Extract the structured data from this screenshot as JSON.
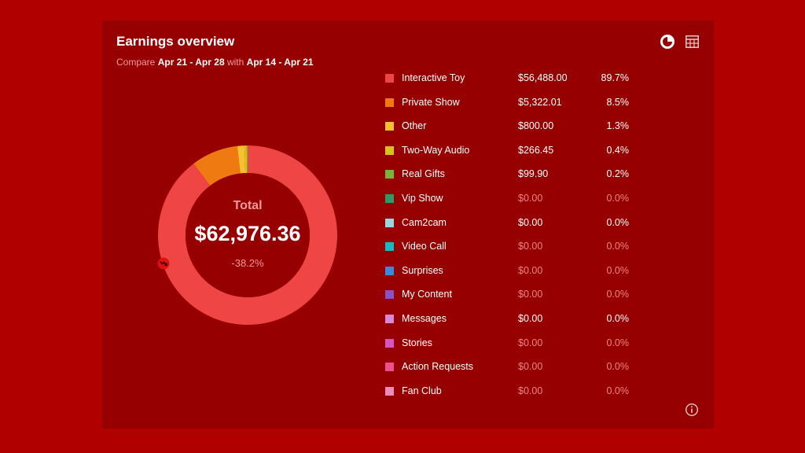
{
  "header": {
    "title": "Earnings overview",
    "compare_word": "Compare",
    "current_range": "Apr 21 - Apr 28",
    "with_word": "with",
    "previous_range": "Apr 14 - Apr 21"
  },
  "toolbar": {
    "pie_view_icon": "pie-chart-icon",
    "table_view_icon": "table-icon",
    "info_icon": "info-icon"
  },
  "summary": {
    "total_label": "Total",
    "total_value": "$62,976.36",
    "change": "-38.2%",
    "change_icon": "trend-down-icon"
  },
  "colors": {
    "page_bg": "#b10000",
    "panel_bg": "#960000",
    "donut_hole": "#960000"
  },
  "chart_data": {
    "type": "pie",
    "title": "Earnings overview",
    "categories": [
      "Interactive Toy",
      "Private Show",
      "Other",
      "Two-Way Audio",
      "Real Gifts",
      "Vip Show",
      "Cam2cam",
      "Video Call",
      "Surprises",
      "My Content",
      "Messages",
      "Stories",
      "Action Requests",
      "Fan Club"
    ],
    "values": [
      56488.0,
      5322.01,
      800.0,
      266.45,
      99.9,
      0,
      0,
      0,
      0,
      0,
      0,
      0,
      0,
      0
    ],
    "percentages": [
      89.7,
      8.5,
      1.3,
      0.4,
      0.2,
      0,
      0,
      0,
      0,
      0,
      0,
      0,
      0,
      0
    ],
    "style": "donut"
  },
  "legend": [
    {
      "label": "Interactive Toy",
      "amount": "$56,488.00",
      "percent": "89.7%",
      "color": "#f04545",
      "dim": false
    },
    {
      "label": "Private Show",
      "amount": "$5,322.01",
      "percent": "8.5%",
      "color": "#f07a12",
      "dim": false
    },
    {
      "label": "Other",
      "amount": "$800.00",
      "percent": "1.3%",
      "color": "#f6c030",
      "dim": false
    },
    {
      "label": "Two-Way Audio",
      "amount": "$266.45",
      "percent": "0.4%",
      "color": "#d6c218",
      "dim": false
    },
    {
      "label": "Real Gifts",
      "amount": "$99.90",
      "percent": "0.2%",
      "color": "#78b43a",
      "dim": false
    },
    {
      "label": "Vip Show",
      "amount": "$0.00",
      "percent": "0.0%",
      "color": "#2e9a6a",
      "dim": true
    },
    {
      "label": "Cam2cam",
      "amount": "$0.00",
      "percent": "0.0%",
      "color": "#9ad8e0",
      "dim": false
    },
    {
      "label": "Video Call",
      "amount": "$0.00",
      "percent": "0.0%",
      "color": "#18b8c8",
      "dim": true
    },
    {
      "label": "Surprises",
      "amount": "$0.00",
      "percent": "0.0%",
      "color": "#3e8ad8",
      "dim": true
    },
    {
      "label": "My Content",
      "amount": "$0.00",
      "percent": "0.0%",
      "color": "#8a52c8",
      "dim": true
    },
    {
      "label": "Messages",
      "amount": "$0.00",
      "percent": "0.0%",
      "color": "#d888d8",
      "dim": false
    },
    {
      "label": "Stories",
      "amount": "$0.00",
      "percent": "0.0%",
      "color": "#d855c0",
      "dim": true
    },
    {
      "label": "Action Requests",
      "amount": "$0.00",
      "percent": "0.0%",
      "color": "#f0508a",
      "dim": true
    },
    {
      "label": "Fan Club",
      "amount": "$0.00",
      "percent": "0.0%",
      "color": "#f08ab8",
      "dim": true
    }
  ]
}
